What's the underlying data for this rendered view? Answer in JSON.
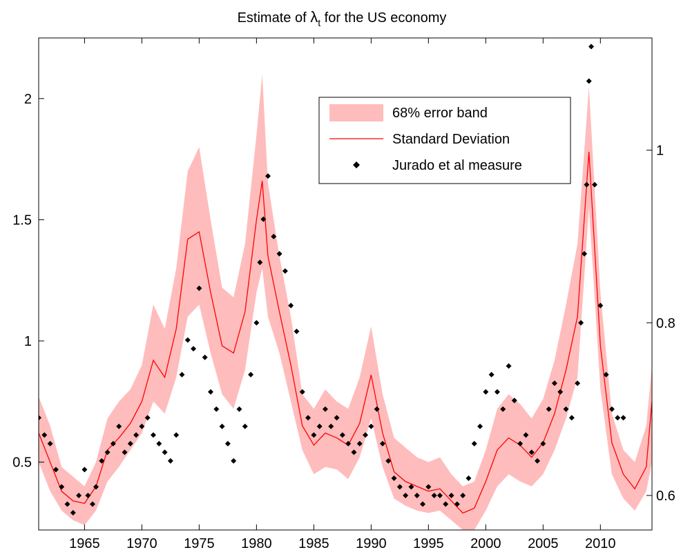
{
  "chart_data": {
    "type": "line",
    "title_prefix": "Estimate of ",
    "title_symbol": "λ",
    "title_subscript": "t",
    "title_suffix": " for the US economy",
    "xlim": [
      1961,
      2014.5
    ],
    "ylim_left": [
      0.22,
      2.25
    ],
    "ylim_right": [
      0.56,
      1.13
    ],
    "x_ticks": [
      1965,
      1970,
      1975,
      1980,
      1985,
      1990,
      1995,
      2000,
      2005,
      2010
    ],
    "y_left_ticks": [
      0.5,
      1,
      1.5,
      2
    ],
    "y_right_ticks": [
      0.6,
      0.8,
      1
    ],
    "grid": false,
    "legend_position": "upper-right",
    "colors": {
      "band": "#ffbcbc",
      "line": "#ff0000",
      "markers": "#000000"
    },
    "series": [
      {
        "name": "68% error band",
        "axis": "left",
        "kind": "band",
        "x": [
          1961,
          1962,
          1963,
          1964,
          1965,
          1966,
          1967,
          1968,
          1969,
          1970,
          1971,
          1972,
          1973,
          1974,
          1975,
          1976,
          1977,
          1978,
          1979,
          1980,
          1980.5,
          1981,
          1982,
          1983,
          1984,
          1985,
          1986,
          1987,
          1988,
          1989,
          1990,
          1991,
          1992,
          1993,
          1994,
          1995,
          1996,
          1997,
          1998,
          1999,
          2000,
          2001,
          2002,
          2003,
          2004,
          2005,
          2006,
          2007,
          2008,
          2009,
          2010,
          2011,
          2012,
          2013,
          2014,
          2014.5
        ],
        "lower": [
          0.5,
          0.38,
          0.3,
          0.26,
          0.24,
          0.3,
          0.42,
          0.48,
          0.55,
          0.62,
          0.75,
          0.7,
          0.85,
          1.1,
          1.15,
          0.95,
          0.78,
          0.72,
          0.88,
          1.2,
          1.3,
          1.1,
          0.95,
          0.75,
          0.55,
          0.45,
          0.48,
          0.47,
          0.43,
          0.52,
          0.68,
          0.48,
          0.35,
          0.32,
          0.3,
          0.29,
          0.3,
          0.26,
          0.22,
          0.22,
          0.3,
          0.4,
          0.45,
          0.42,
          0.4,
          0.45,
          0.55,
          0.68,
          0.85,
          1.55,
          0.8,
          0.45,
          0.35,
          0.3,
          0.38,
          0.5
        ],
        "upper": [
          0.77,
          0.65,
          0.48,
          0.44,
          0.4,
          0.5,
          0.68,
          0.75,
          0.8,
          0.9,
          1.15,
          1.05,
          1.3,
          1.7,
          1.8,
          1.5,
          1.22,
          1.18,
          1.4,
          1.85,
          2.1,
          1.65,
          1.35,
          1.1,
          0.78,
          0.72,
          0.8,
          0.75,
          0.72,
          0.85,
          1.06,
          0.78,
          0.6,
          0.56,
          0.52,
          0.5,
          0.52,
          0.45,
          0.4,
          0.42,
          0.55,
          0.72,
          0.78,
          0.74,
          0.68,
          0.76,
          0.92,
          1.15,
          1.4,
          2.05,
          1.2,
          0.7,
          0.55,
          0.5,
          0.65,
          0.9
        ]
      },
      {
        "name": "Standard Deviation",
        "axis": "left",
        "kind": "line",
        "x": [
          1961,
          1962,
          1963,
          1964,
          1965,
          1966,
          1967,
          1968,
          1969,
          1970,
          1971,
          1972,
          1973,
          1974,
          1975,
          1976,
          1977,
          1978,
          1979,
          1980,
          1980.5,
          1981,
          1982,
          1983,
          1984,
          1985,
          1986,
          1987,
          1988,
          1989,
          1990,
          1991,
          1992,
          1993,
          1994,
          1995,
          1996,
          1997,
          1998,
          1999,
          2000,
          2001,
          2002,
          2003,
          2004,
          2005,
          2006,
          2007,
          2008,
          2009,
          2010,
          2011,
          2012,
          2013,
          2014,
          2014.5
        ],
        "y": [
          0.62,
          0.5,
          0.38,
          0.34,
          0.33,
          0.4,
          0.55,
          0.6,
          0.66,
          0.75,
          0.92,
          0.85,
          1.05,
          1.42,
          1.45,
          1.2,
          0.98,
          0.95,
          1.12,
          1.5,
          1.66,
          1.35,
          1.12,
          0.9,
          0.65,
          0.57,
          0.62,
          0.6,
          0.57,
          0.66,
          0.86,
          0.62,
          0.46,
          0.42,
          0.4,
          0.38,
          0.39,
          0.34,
          0.29,
          0.31,
          0.42,
          0.55,
          0.6,
          0.57,
          0.52,
          0.58,
          0.7,
          0.88,
          1.1,
          1.78,
          0.98,
          0.58,
          0.45,
          0.39,
          0.48,
          0.75
        ]
      },
      {
        "name": "Jurado et al measure",
        "axis": "right",
        "kind": "scatter",
        "x": [
          1961,
          1961.5,
          1962,
          1962.5,
          1963,
          1963.5,
          1964,
          1964.5,
          1965,
          1965.3,
          1965.7,
          1966,
          1966.5,
          1967,
          1967.5,
          1968,
          1968.5,
          1969,
          1969.5,
          1970,
          1970.5,
          1971,
          1971.5,
          1972,
          1972.5,
          1973,
          1973.5,
          1974,
          1974.5,
          1975,
          1975.5,
          1976,
          1976.5,
          1977,
          1977.5,
          1978,
          1978.5,
          1979,
          1979.5,
          1980,
          1980.3,
          1980.6,
          1981,
          1981.5,
          1982,
          1982.5,
          1983,
          1983.5,
          1984,
          1984.5,
          1985,
          1985.5,
          1986,
          1986.5,
          1987,
          1987.5,
          1988,
          1988.5,
          1989,
          1989.5,
          1990,
          1990.5,
          1991,
          1991.5,
          1992,
          1992.5,
          1993,
          1993.5,
          1994,
          1994.5,
          1995,
          1995.5,
          1996,
          1996.5,
          1997,
          1997.5,
          1998,
          1998.5,
          1999,
          1999.5,
          2000,
          2000.5,
          2001,
          2001.5,
          2002,
          2002.5,
          2003,
          2003.5,
          2004,
          2004.5,
          2005,
          2005.5,
          2006,
          2006.5,
          2007,
          2007.5,
          2008,
          2008.3,
          2008.6,
          2008.8,
          2009,
          2009.2,
          2009.5,
          2010,
          2010.5,
          2011,
          2011.5,
          2012
        ],
        "y": [
          0.69,
          0.67,
          0.66,
          0.63,
          0.61,
          0.59,
          0.58,
          0.6,
          0.63,
          0.6,
          0.59,
          0.61,
          0.64,
          0.65,
          0.66,
          0.68,
          0.65,
          0.66,
          0.67,
          0.68,
          0.69,
          0.67,
          0.66,
          0.65,
          0.64,
          0.67,
          0.74,
          0.78,
          0.77,
          0.84,
          0.76,
          0.72,
          0.7,
          0.68,
          0.66,
          0.64,
          0.7,
          0.68,
          0.74,
          0.8,
          0.87,
          0.92,
          0.97,
          0.9,
          0.88,
          0.86,
          0.82,
          0.79,
          0.72,
          0.69,
          0.67,
          0.68,
          0.7,
          0.68,
          0.69,
          0.67,
          0.66,
          0.65,
          0.66,
          0.67,
          0.68,
          0.7,
          0.66,
          0.64,
          0.62,
          0.61,
          0.6,
          0.61,
          0.6,
          0.59,
          0.61,
          0.6,
          0.6,
          0.59,
          0.6,
          0.59,
          0.6,
          0.62,
          0.66,
          0.68,
          0.72,
          0.74,
          0.72,
          0.7,
          0.75,
          0.71,
          0.66,
          0.67,
          0.65,
          0.64,
          0.66,
          0.7,
          0.73,
          0.72,
          0.7,
          0.69,
          0.73,
          0.8,
          0.88,
          0.96,
          1.08,
          1.12,
          0.96,
          0.82,
          0.74,
          0.7,
          0.69,
          0.69
        ]
      }
    ]
  }
}
